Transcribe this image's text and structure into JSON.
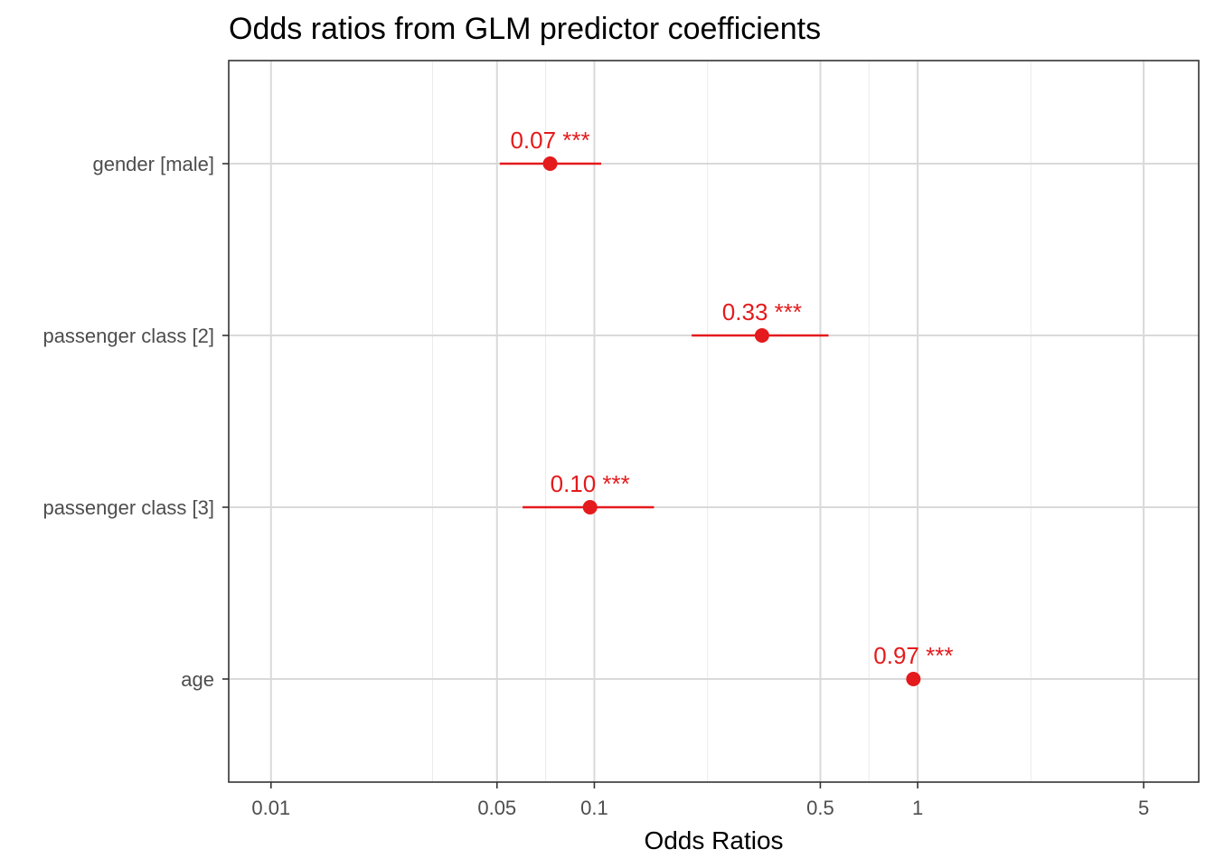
{
  "chart_data": {
    "type": "forest",
    "title": "Odds ratios from GLM predictor coefficients",
    "xlabel": "Odds Ratios",
    "ylabel": "",
    "x_scale": "log",
    "xlim": [
      0.0074,
      7.4
    ],
    "x_ticks": [
      0.01,
      0.05,
      0.1,
      0.5,
      1,
      5
    ],
    "x_tick_labels": [
      "0.01",
      "0.05",
      "0.1",
      "0.5",
      "1",
      "5"
    ],
    "x_minor_ticks": [
      0.0316,
      0.0707,
      0.224,
      0.707,
      2.24
    ],
    "grid": true,
    "point_color": "#E41A1C",
    "rows": [
      {
        "term": "gender [male]",
        "estimate": 0.073,
        "ci_low": 0.051,
        "ci_high": 0.105,
        "label": "0.07 ***"
      },
      {
        "term": "passenger class [2]",
        "estimate": 0.33,
        "ci_low": 0.2,
        "ci_high": 0.53,
        "label": "0.33 ***"
      },
      {
        "term": "passenger class [3]",
        "estimate": 0.097,
        "ci_low": 0.06,
        "ci_high": 0.153,
        "label": "0.10 ***"
      },
      {
        "term": "age",
        "estimate": 0.97,
        "ci_low": 0.955,
        "ci_high": 0.985,
        "label": "0.97 ***"
      }
    ]
  }
}
